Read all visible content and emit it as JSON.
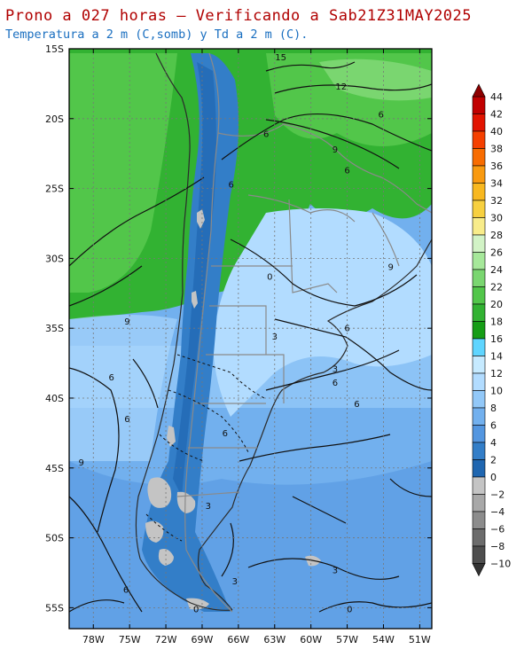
{
  "title": "Prono a 027 horas — Verificando a Sab21Z31MAY2025",
  "subtitle": "Temperatura a 2 m (C,somb) y Td a 2 m (C).",
  "map": {
    "lat_ticks": [
      {
        "lat": -15,
        "label": "15S"
      },
      {
        "lat": -20,
        "label": "20S"
      },
      {
        "lat": -25,
        "label": "25S"
      },
      {
        "lat": -30,
        "label": "30S"
      },
      {
        "lat": -35,
        "label": "35S"
      },
      {
        "lat": -40,
        "label": "40S"
      },
      {
        "lat": -45,
        "label": "45S"
      },
      {
        "lat": -50,
        "label": "50S"
      },
      {
        "lat": -55,
        "label": "55S"
      }
    ],
    "lon_ticks": [
      {
        "lon": -78,
        "label": "78W"
      },
      {
        "lon": -75,
        "label": "75W"
      },
      {
        "lon": -72,
        "label": "72W"
      },
      {
        "lon": -69,
        "label": "69W"
      },
      {
        "lon": -66,
        "label": "66W"
      },
      {
        "lon": -63,
        "label": "63W"
      },
      {
        "lon": -60,
        "label": "60W"
      },
      {
        "lon": -57,
        "label": "57W"
      },
      {
        "lon": -54,
        "label": "54W"
      },
      {
        "lon": -51,
        "label": "51W"
      }
    ],
    "contour_labels": [
      {
        "text": "15",
        "lon": -62.5,
        "lat": -15.6
      },
      {
        "text": "12",
        "lon": -57.5,
        "lat": -17.7
      },
      {
        "text": "6",
        "lon": -54.2,
        "lat": -19.7
      },
      {
        "text": "6",
        "lon": -63.7,
        "lat": -21.1
      },
      {
        "text": "9",
        "lon": -58.0,
        "lat": -22.2
      },
      {
        "text": "6",
        "lon": -57.0,
        "lat": -23.7
      },
      {
        "text": "6",
        "lon": -66.6,
        "lat": -24.7
      },
      {
        "text": "9",
        "lon": -75.2,
        "lat": -34.5
      },
      {
        "text": "0",
        "lon": -63.4,
        "lat": -31.3
      },
      {
        "text": "9",
        "lon": -53.4,
        "lat": -30.6
      },
      {
        "text": "6",
        "lon": -57.0,
        "lat": -35.0
      },
      {
        "text": "3",
        "lon": -63.0,
        "lat": -35.6
      },
      {
        "text": "6",
        "lon": -76.5,
        "lat": -38.5
      },
      {
        "text": "3",
        "lon": -58.0,
        "lat": -37.9
      },
      {
        "text": "6",
        "lon": -58.0,
        "lat": -38.9
      },
      {
        "text": "6",
        "lon": -56.2,
        "lat": -40.4
      },
      {
        "text": "6",
        "lon": -75.2,
        "lat": -41.5
      },
      {
        "text": "6",
        "lon": -67.1,
        "lat": -42.5
      },
      {
        "text": "9",
        "lon": -79.0,
        "lat": -44.6
      },
      {
        "text": "3",
        "lon": -68.5,
        "lat": -47.7
      },
      {
        "text": "3",
        "lon": -58.0,
        "lat": -52.3
      },
      {
        "text": "3",
        "lon": -66.3,
        "lat": -53.1
      },
      {
        "text": "6",
        "lon": -75.3,
        "lat": -53.7
      },
      {
        "text": "0",
        "lon": -69.5,
        "lat": -55.1
      },
      {
        "text": "0",
        "lon": -56.8,
        "lat": -55.1
      }
    ]
  },
  "colorbar": {
    "labels": [
      "44",
      "42",
      "40",
      "38",
      "36",
      "34",
      "32",
      "30",
      "28",
      "26",
      "24",
      "22",
      "20",
      "18",
      "16",
      "14",
      "12",
      "10",
      "8",
      "6",
      "4",
      "2",
      "0",
      "−2",
      "−4",
      "−6",
      "−8",
      "−10"
    ],
    "colors": [
      "#c10000",
      "#e21400",
      "#f54000",
      "#f86c00",
      "#f99a10",
      "#f8b820",
      "#f7d040",
      "#f8ec8a",
      "#d2f3c6",
      "#a6e89a",
      "#7ad670",
      "#52c64a",
      "#32b232",
      "#169d16",
      "#5fd5ff",
      "#c6eaff",
      "#b2dcff",
      "#92c8f8",
      "#72b0ee",
      "#5396e0",
      "#337ec8",
      "#1f66b0",
      "#c4c4c4",
      "#a8a8a8",
      "#8c8c8c",
      "#6c6c6c",
      "#4e4e4e"
    ]
  }
}
